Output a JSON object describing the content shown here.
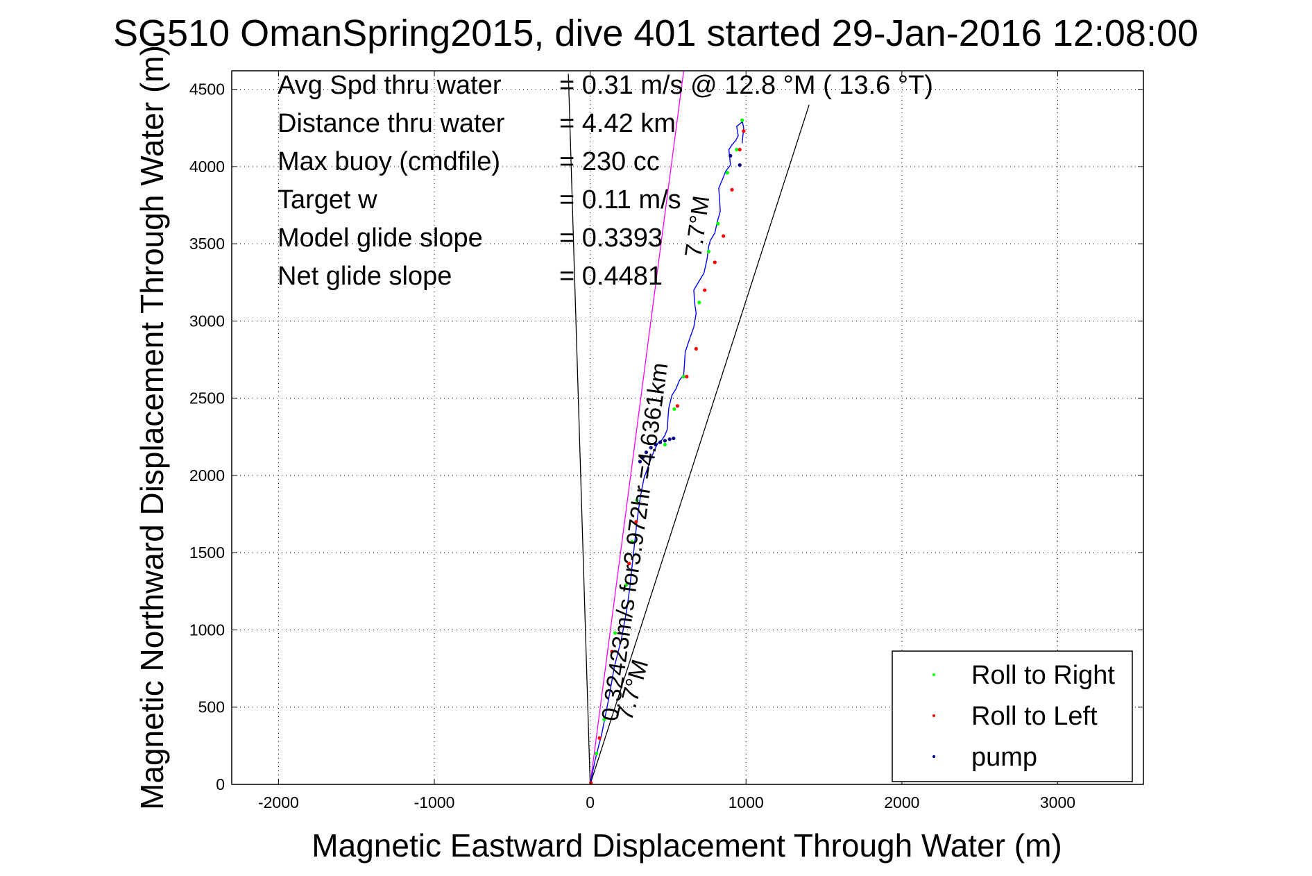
{
  "chart_data": {
    "type": "line",
    "title": "SG510 OmanSpring2015, dive 401 started 29-Jan-2016 12:08:00",
    "xlabel": "Magnetic Eastward Displacement Through Water (m)",
    "ylabel": "Magnetic Northward Displacement Through Water (m)",
    "xlim": [
      -2300,
      3550
    ],
    "ylim": [
      0,
      4620
    ],
    "xticks": [
      "-2000",
      "-1000",
      "0",
      "1000",
      "2000",
      "3000"
    ],
    "yticks": [
      "0",
      "500",
      "1000",
      "1500",
      "2000",
      "2500",
      "3000",
      "3500",
      "4000",
      "4500"
    ],
    "grid": true,
    "legend_position": "lower-right",
    "annotations": [
      {
        "label": "Avg Spd thru water",
        "value": "=  0.31 m/s @  12.8 °M ( 13.6 °T)"
      },
      {
        "label": "Distance thru water",
        "value": "=  4.42 km"
      },
      {
        "label": "Max buoy (cmdfile)",
        "value": "= 230 cc"
      },
      {
        "label": "Target w",
        "value": "= 0.11 m/s"
      },
      {
        "label": "Model glide slope",
        "value": "= 0.3393"
      },
      {
        "label": "Net glide slope",
        "value": "= 0.4481"
      }
    ],
    "rotated_labels": {
      "current": "0.32423m/s for3.972hr =4.6361km",
      "angle_upper": "7.7°M",
      "angle_lower": "7.7°M"
    },
    "series": [
      {
        "name": "track",
        "color": "#0000ff",
        "x": [
          0,
          30,
          75,
          120,
          155,
          200,
          235,
          255,
          270,
          285,
          300,
          320,
          345,
          380,
          410,
          435,
          460,
          480,
          495,
          500,
          505,
          525,
          550,
          575,
          600,
          605,
          610,
          640,
          665,
          680,
          670,
          665,
          700,
          730,
          750,
          760,
          770,
          800,
          815,
          835,
          830,
          825,
          850,
          870,
          900,
          895,
          890,
          910,
          935,
          950,
          945,
          940,
          965,
          975,
          975,
          975,
          985,
          980,
          975
        ],
        "y": [
          0,
          150,
          330,
          560,
          760,
          940,
          1130,
          1280,
          1420,
          1560,
          1700,
          1850,
          1980,
          2080,
          2160,
          2210,
          2230,
          2260,
          2300,
          2380,
          2440,
          2520,
          2560,
          2620,
          2650,
          2720,
          2800,
          2890,
          2960,
          3050,
          3120,
          3200,
          3260,
          3310,
          3400,
          3480,
          3520,
          3570,
          3640,
          3710,
          3790,
          3860,
          3920,
          3970,
          4010,
          4060,
          4110,
          4140,
          4170,
          4200,
          4230,
          4260,
          4280,
          4290,
          4300,
          4300,
          4250,
          4200,
          4150
        ]
      },
      {
        "name": "Roll to Right",
        "color": "#00ff00",
        "x": [
          40,
          90,
          160,
          230,
          270,
          300,
          480,
          540,
          600,
          700,
          760,
          820,
          880,
          940,
          975
        ],
        "y": [
          200,
          420,
          980,
          1290,
          1570,
          1840,
          2200,
          2430,
          2640,
          3120,
          3450,
          3630,
          3960,
          4110,
          4300
        ]
      },
      {
        "name": "Roll to Left",
        "color": "#ff0000",
        "x": [
          5,
          60,
          140,
          250,
          295,
          560,
          620,
          680,
          735,
          800,
          855,
          910,
          960,
          985
        ],
        "y": [
          10,
          300,
          860,
          1430,
          1700,
          2450,
          2640,
          2820,
          3200,
          3380,
          3550,
          3850,
          4110,
          4230
        ]
      },
      {
        "name": "pump",
        "color": "#000080",
        "x": [
          320,
          340,
          360,
          390,
          420,
          450,
          480,
          510,
          535,
          900,
          960
        ],
        "y": [
          2090,
          2120,
          2150,
          2180,
          2200,
          2215,
          2225,
          2235,
          2240,
          4070,
          4010
        ]
      }
    ],
    "reference_lines": [
      {
        "color": "#000000",
        "x": [
          0,
          -140
        ],
        "y": [
          0,
          4600
        ]
      },
      {
        "color": "#000000",
        "x": [
          0,
          1405
        ],
        "y": [
          0,
          4400
        ]
      },
      {
        "color": "#ff00ff",
        "x": [
          0,
          600
        ],
        "y": [
          0,
          4620
        ]
      }
    ]
  }
}
